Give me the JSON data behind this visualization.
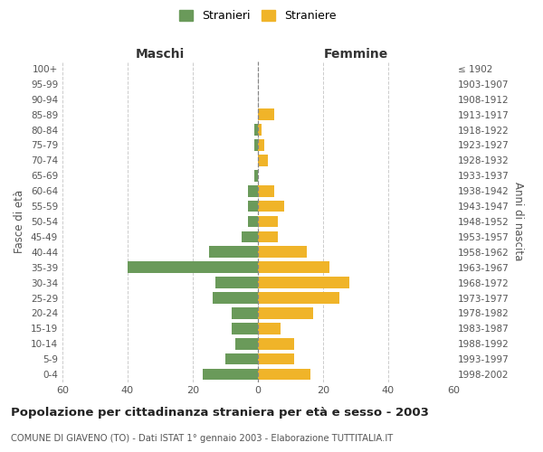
{
  "age_groups": [
    "0-4",
    "5-9",
    "10-14",
    "15-19",
    "20-24",
    "25-29",
    "30-34",
    "35-39",
    "40-44",
    "45-49",
    "50-54",
    "55-59",
    "60-64",
    "65-69",
    "70-74",
    "75-79",
    "80-84",
    "85-89",
    "90-94",
    "95-99",
    "100+"
  ],
  "birth_years": [
    "1998-2002",
    "1993-1997",
    "1988-1992",
    "1983-1987",
    "1978-1982",
    "1973-1977",
    "1968-1972",
    "1963-1967",
    "1958-1962",
    "1953-1957",
    "1948-1952",
    "1943-1947",
    "1938-1942",
    "1933-1937",
    "1928-1932",
    "1923-1927",
    "1918-1922",
    "1913-1917",
    "1908-1912",
    "1903-1907",
    "≤ 1902"
  ],
  "maschi": [
    17,
    10,
    7,
    8,
    8,
    14,
    13,
    40,
    15,
    5,
    3,
    3,
    3,
    1,
    0,
    1,
    1,
    0,
    0,
    0,
    0
  ],
  "femmine": [
    16,
    11,
    11,
    7,
    17,
    25,
    28,
    22,
    15,
    6,
    6,
    8,
    5,
    0,
    3,
    2,
    1,
    5,
    0,
    0,
    0
  ],
  "color_maschi": "#6a9a5a",
  "color_femmine": "#f0b429",
  "xlim": 60,
  "title": "Popolazione per cittadinanza straniera per età e sesso - 2003",
  "subtitle": "COMUNE DI GIAVENO (TO) - Dati ISTAT 1° gennaio 2003 - Elaborazione TUTTITALIA.IT",
  "label_maschi": "Maschi",
  "label_femmine": "Femmine",
  "ylabel_left": "Fasce di età",
  "ylabel_right": "Anni di nascita",
  "legend_stranieri": "Stranieri",
  "legend_straniere": "Straniere",
  "background_color": "#ffffff",
  "grid_color": "#cccccc",
  "bar_height": 0.75
}
